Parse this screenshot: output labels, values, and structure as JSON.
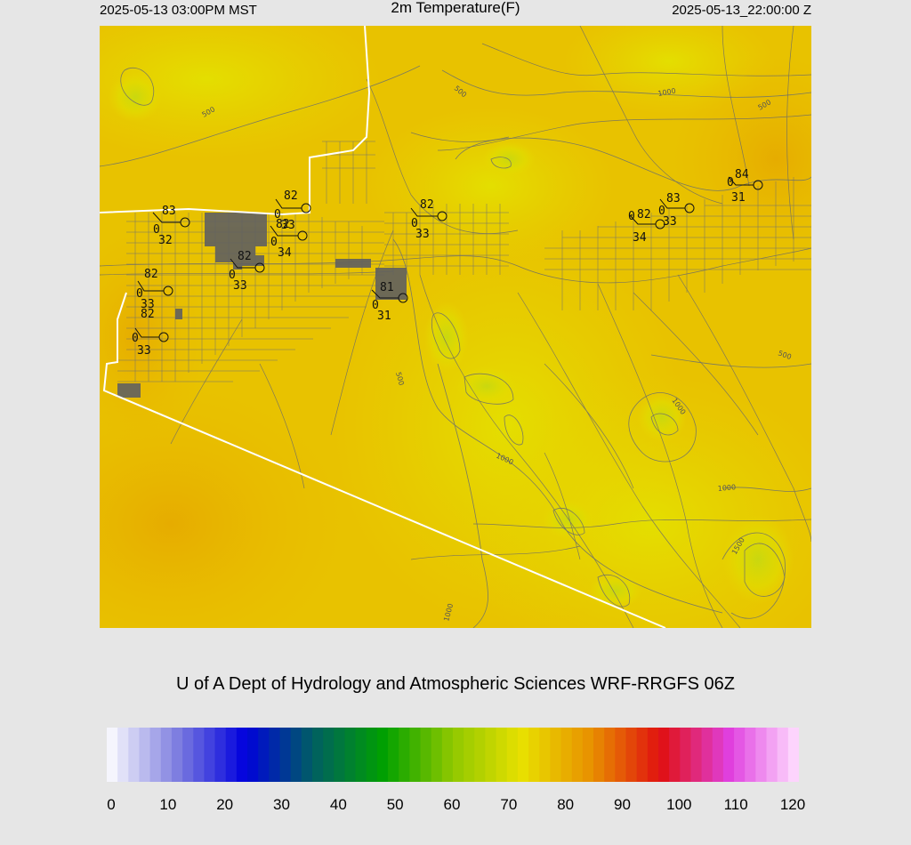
{
  "header": {
    "local_time": "2025-05-13 03:00PM MST",
    "title": "2m Temperature(F)",
    "utc_time": "2025-05-13_22:00:00 Z"
  },
  "credit": "U of A Dept of Hydrology and Atmospheric Sciences WRF-RRGFS 06Z",
  "colorbar": {
    "min": 0,
    "max": 120,
    "tick_labels": [
      "0",
      "10",
      "20",
      "30",
      "40",
      "50",
      "60",
      "70",
      "80",
      "90",
      "100",
      "110",
      "120"
    ],
    "colors": [
      "#ffffff",
      "#8080e0",
      "#0000dd",
      "#006060",
      "#00a000",
      "#90c800",
      "#e8e000",
      "#e89000",
      "#e01010",
      "#e040e0",
      "#ffe0ff"
    ]
  },
  "map": {
    "fill_colors": {
      "base": "#e8c400",
      "warm": "#e8b400",
      "cool": "#e2dc00",
      "coolest": "#c8d810"
    },
    "elevation_contour_labels": [
      "500",
      "500",
      "1000",
      "500",
      "1000",
      "500",
      "1000",
      "1000",
      "1500",
      "500",
      "1000"
    ],
    "stations": [
      {
        "id": "s1",
        "temp": "83",
        "dewpoint": "32",
        "gust": "0"
      },
      {
        "id": "s2",
        "temp": "82",
        "dewpoint": "34",
        "gust": "0"
      },
      {
        "id": "s3",
        "temp": "82",
        "dewpoint": "33",
        "gust": "0"
      },
      {
        "id": "s4",
        "temp": "82",
        "dewpoint": "33",
        "gust": "0"
      },
      {
        "id": "s5",
        "temp": "82",
        "dewpoint": "33",
        "gust": "0"
      },
      {
        "id": "s6",
        "temp": "82",
        "dewpoint": "33",
        "gust": "0"
      },
      {
        "id": "s7",
        "temp": "81",
        "dewpoint": "31",
        "gust": "0"
      },
      {
        "id": "s8",
        "temp": "82",
        "dewpoint": "33",
        "gust": "0"
      },
      {
        "id": "s9",
        "temp": "82",
        "dewpoint": "34",
        "gust": "0"
      },
      {
        "id": "s10",
        "temp": "83",
        "dewpoint": "33",
        "gust": "0"
      },
      {
        "id": "s11",
        "temp": "84",
        "dewpoint": "31",
        "gust": "0"
      }
    ]
  }
}
